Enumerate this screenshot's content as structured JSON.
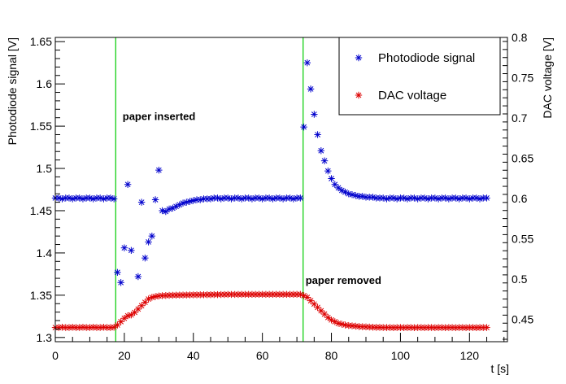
{
  "chart_data": {
    "type": "scatter",
    "title": "",
    "xlabel": "t [s]",
    "ylabel_left": "Photodiode signal [V]",
    "ylabel_right": "DAC voltage [V]",
    "xlim": [
      0,
      131
    ],
    "ylim_left": [
      1.295,
      1.655
    ],
    "ylim_right": [
      0.422,
      0.8
    ],
    "x_ticks": [
      0,
      20,
      40,
      60,
      80,
      100,
      120
    ],
    "y_left_ticks": [
      1.3,
      1.35,
      1.4,
      1.45,
      1.5,
      1.55,
      1.6,
      1.65
    ],
    "y_right_ticks": [
      0.45,
      0.5,
      0.55,
      0.6,
      0.65,
      0.7,
      0.75,
      0.8
    ],
    "grid": false,
    "legend_position": "top-right",
    "marker": "*",
    "vertical_lines": [
      {
        "x": 17.5,
        "color": "#00cc00"
      },
      {
        "x": 71.8,
        "color": "#00cc00"
      }
    ],
    "annotations": [
      {
        "text": "paper inserted",
        "x": 19.5,
        "y": 1.562,
        "axis": "left"
      },
      {
        "text": "paper removed",
        "x": 72.5,
        "y": 1.368,
        "axis": "left"
      }
    ],
    "series": [
      {
        "name": "Photodiode signal",
        "color": "#0000cc",
        "axis": "left",
        "points": [
          [
            0,
            1.465
          ],
          [
            1,
            1.465
          ],
          [
            2,
            1.464
          ],
          [
            3,
            1.465
          ],
          [
            4,
            1.465
          ],
          [
            5,
            1.464
          ],
          [
            6,
            1.465
          ],
          [
            7,
            1.465
          ],
          [
            8,
            1.464
          ],
          [
            9,
            1.465
          ],
          [
            10,
            1.465
          ],
          [
            11,
            1.464
          ],
          [
            12,
            1.465
          ],
          [
            13,
            1.465
          ],
          [
            14,
            1.464
          ],
          [
            15,
            1.465
          ],
          [
            16,
            1.465
          ],
          [
            17,
            1.464
          ],
          [
            18,
            1.377
          ],
          [
            19,
            1.365
          ],
          [
            20,
            1.406
          ],
          [
            21,
            1.481
          ],
          [
            22,
            1.403
          ],
          [
            24,
            1.372
          ],
          [
            25,
            1.46
          ],
          [
            26,
            1.394
          ],
          [
            27,
            1.413
          ],
          [
            28,
            1.42
          ],
          [
            29,
            1.463
          ],
          [
            30,
            1.498
          ],
          [
            31,
            1.45
          ],
          [
            32,
            1.449
          ],
          [
            33,
            1.452
          ],
          [
            34,
            1.453
          ],
          [
            35,
            1.455
          ],
          [
            36,
            1.457
          ],
          [
            37,
            1.459
          ],
          [
            38,
            1.46
          ],
          [
            39,
            1.461
          ],
          [
            40,
            1.462
          ],
          [
            41,
            1.463
          ],
          [
            42,
            1.463
          ],
          [
            43,
            1.464
          ],
          [
            44,
            1.464
          ],
          [
            45,
            1.464
          ],
          [
            46,
            1.465
          ],
          [
            47,
            1.465
          ],
          [
            48,
            1.464
          ],
          [
            49,
            1.465
          ],
          [
            50,
            1.465
          ],
          [
            51,
            1.464
          ],
          [
            52,
            1.465
          ],
          [
            53,
            1.465
          ],
          [
            54,
            1.464
          ],
          [
            55,
            1.465
          ],
          [
            56,
            1.465
          ],
          [
            57,
            1.464
          ],
          [
            58,
            1.465
          ],
          [
            59,
            1.465
          ],
          [
            60,
            1.464
          ],
          [
            61,
            1.465
          ],
          [
            62,
            1.465
          ],
          [
            63,
            1.464
          ],
          [
            64,
            1.465
          ],
          [
            65,
            1.465
          ],
          [
            66,
            1.464
          ],
          [
            67,
            1.465
          ],
          [
            68,
            1.465
          ],
          [
            69,
            1.464
          ],
          [
            70,
            1.465
          ],
          [
            71,
            1.465
          ],
          [
            72,
            1.549
          ],
          [
            73,
            1.625
          ],
          [
            74,
            1.594
          ],
          [
            75,
            1.564
          ],
          [
            76,
            1.54
          ],
          [
            77,
            1.521
          ],
          [
            78,
            1.509
          ],
          [
            79,
            1.497
          ],
          [
            80,
            1.488
          ],
          [
            81,
            1.481
          ],
          [
            82,
            1.477
          ],
          [
            83,
            1.474
          ],
          [
            84,
            1.472
          ],
          [
            85,
            1.47
          ],
          [
            86,
            1.469
          ],
          [
            87,
            1.468
          ],
          [
            88,
            1.467
          ],
          [
            89,
            1.467
          ],
          [
            90,
            1.466
          ],
          [
            91,
            1.466
          ],
          [
            92,
            1.466
          ],
          [
            93,
            1.465
          ],
          [
            94,
            1.465
          ],
          [
            95,
            1.465
          ],
          [
            96,
            1.464
          ],
          [
            97,
            1.465
          ],
          [
            98,
            1.465
          ],
          [
            99,
            1.464
          ],
          [
            100,
            1.465
          ],
          [
            101,
            1.465
          ],
          [
            102,
            1.464
          ],
          [
            103,
            1.465
          ],
          [
            104,
            1.465
          ],
          [
            105,
            1.464
          ],
          [
            106,
            1.465
          ],
          [
            107,
            1.465
          ],
          [
            108,
            1.464
          ],
          [
            109,
            1.465
          ],
          [
            110,
            1.465
          ],
          [
            111,
            1.464
          ],
          [
            112,
            1.465
          ],
          [
            113,
            1.465
          ],
          [
            114,
            1.464
          ],
          [
            115,
            1.465
          ],
          [
            116,
            1.465
          ],
          [
            117,
            1.464
          ],
          [
            118,
            1.465
          ],
          [
            119,
            1.465
          ],
          [
            120,
            1.464
          ],
          [
            121,
            1.465
          ],
          [
            122,
            1.465
          ],
          [
            123,
            1.464
          ],
          [
            124,
            1.465
          ],
          [
            125,
            1.465
          ]
        ]
      },
      {
        "name": "DAC voltage",
        "color": "#dd0000",
        "axis": "right",
        "points": [
          [
            0,
            0.4396
          ],
          [
            1,
            0.4396
          ],
          [
            2,
            0.44
          ],
          [
            3,
            0.4396
          ],
          [
            4,
            0.4396
          ],
          [
            5,
            0.44
          ],
          [
            6,
            0.4396
          ],
          [
            7,
            0.4396
          ],
          [
            8,
            0.44
          ],
          [
            9,
            0.4396
          ],
          [
            10,
            0.4396
          ],
          [
            11,
            0.44
          ],
          [
            12,
            0.4396
          ],
          [
            13,
            0.4396
          ],
          [
            14,
            0.44
          ],
          [
            15,
            0.4396
          ],
          [
            16,
            0.4396
          ],
          [
            17,
            0.44
          ],
          [
            18,
            0.4427
          ],
          [
            19,
            0.4469
          ],
          [
            20,
            0.4511
          ],
          [
            21,
            0.4542
          ],
          [
            22,
            0.4552
          ],
          [
            23,
            0.4584
          ],
          [
            24,
            0.4625
          ],
          [
            25,
            0.4667
          ],
          [
            26,
            0.4709
          ],
          [
            27,
            0.475
          ],
          [
            28,
            0.4771
          ],
          [
            29,
            0.4781
          ],
          [
            30,
            0.4788
          ],
          [
            31,
            0.4792
          ],
          [
            32,
            0.4794
          ],
          [
            33,
            0.4796
          ],
          [
            34,
            0.4797
          ],
          [
            35,
            0.4798
          ],
          [
            36,
            0.4799
          ],
          [
            37,
            0.48
          ],
          [
            38,
            0.48
          ],
          [
            39,
            0.4801
          ],
          [
            40,
            0.4802
          ],
          [
            41,
            0.4802
          ],
          [
            42,
            0.4803
          ],
          [
            43,
            0.4803
          ],
          [
            44,
            0.4804
          ],
          [
            45,
            0.4804
          ],
          [
            46,
            0.4805
          ],
          [
            47,
            0.4805
          ],
          [
            48,
            0.4806
          ],
          [
            49,
            0.4806
          ],
          [
            50,
            0.4807
          ],
          [
            51,
            0.4807
          ],
          [
            52,
            0.4807
          ],
          [
            53,
            0.4807
          ],
          [
            54,
            0.4808
          ],
          [
            55,
            0.4808
          ],
          [
            56,
            0.4808
          ],
          [
            57,
            0.4808
          ],
          [
            58,
            0.4808
          ],
          [
            59,
            0.4808
          ],
          [
            60,
            0.4808
          ],
          [
            61,
            0.4808
          ],
          [
            62,
            0.4808
          ],
          [
            63,
            0.4808
          ],
          [
            64,
            0.4808
          ],
          [
            65,
            0.4808
          ],
          [
            66,
            0.4808
          ],
          [
            67,
            0.4808
          ],
          [
            68,
            0.4808
          ],
          [
            69,
            0.4808
          ],
          [
            70,
            0.4808
          ],
          [
            71,
            0.4808
          ],
          [
            72,
            0.4792
          ],
          [
            73,
            0.4771
          ],
          [
            74,
            0.4729
          ],
          [
            75,
            0.4688
          ],
          [
            76,
            0.4646
          ],
          [
            77,
            0.4604
          ],
          [
            78,
            0.4563
          ],
          [
            79,
            0.4521
          ],
          [
            80,
            0.449
          ],
          [
            81,
            0.4469
          ],
          [
            82,
            0.4448
          ],
          [
            83,
            0.4438
          ],
          [
            84,
            0.4427
          ],
          [
            85,
            0.4421
          ],
          [
            86,
            0.4417
          ],
          [
            87,
            0.4413
          ],
          [
            88,
            0.4408
          ],
          [
            89,
            0.4406
          ],
          [
            90,
            0.4404
          ],
          [
            91,
            0.4402
          ],
          [
            92,
            0.44
          ],
          [
            93,
            0.4398
          ],
          [
            94,
            0.4398
          ],
          [
            95,
            0.4396
          ],
          [
            96,
            0.4396
          ],
          [
            97,
            0.4396
          ],
          [
            98,
            0.4394
          ],
          [
            99,
            0.4396
          ],
          [
            100,
            0.4396
          ],
          [
            101,
            0.4394
          ],
          [
            102,
            0.4396
          ],
          [
            103,
            0.4396
          ],
          [
            104,
            0.4394
          ],
          [
            105,
            0.4396
          ],
          [
            106,
            0.4396
          ],
          [
            107,
            0.4394
          ],
          [
            108,
            0.4396
          ],
          [
            109,
            0.4396
          ],
          [
            110,
            0.4394
          ],
          [
            111,
            0.4396
          ],
          [
            112,
            0.4396
          ],
          [
            113,
            0.4394
          ],
          [
            114,
            0.4396
          ],
          [
            115,
            0.4396
          ],
          [
            116,
            0.4394
          ],
          [
            117,
            0.4396
          ],
          [
            118,
            0.4396
          ],
          [
            119,
            0.4394
          ],
          [
            120,
            0.4396
          ],
          [
            121,
            0.4396
          ],
          [
            122,
            0.4394
          ],
          [
            123,
            0.4396
          ],
          [
            124,
            0.4396
          ],
          [
            125,
            0.4396
          ]
        ]
      }
    ]
  }
}
